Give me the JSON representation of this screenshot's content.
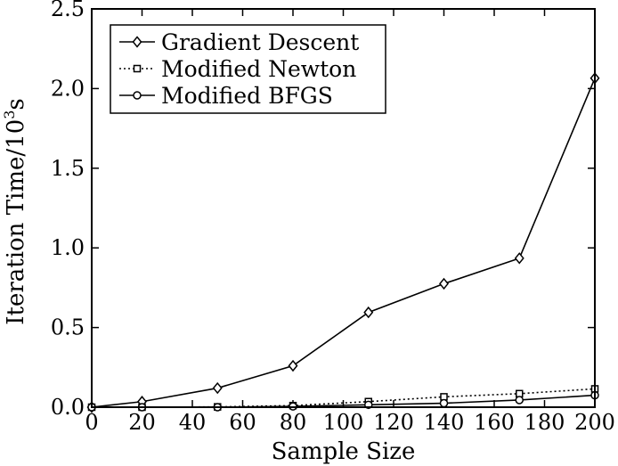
{
  "chart_data": {
    "type": "line",
    "title": "",
    "xlabel": "Sample Size",
    "ylabel": "Iteration Time/10",
    "ylabel_superscript": "3",
    "ylabel_unit": "s",
    "xlim": [
      0,
      200
    ],
    "ylim": [
      0,
      2.5
    ],
    "x_ticks": [
      "0",
      "20",
      "40",
      "60",
      "80",
      "100",
      "120",
      "140",
      "160",
      "180",
      "200"
    ],
    "x_tick_values": [
      0,
      20,
      40,
      60,
      80,
      100,
      120,
      140,
      160,
      180,
      200
    ],
    "y_ticks": [
      "0.0",
      "0.5",
      "1.0",
      "1.5",
      "2.0",
      "2.5"
    ],
    "y_tick_values": [
      0,
      0.5,
      1.0,
      1.5,
      2.0,
      2.5
    ],
    "grid": false,
    "legend_position": "top-left",
    "series": [
      {
        "name": "Gradient Descent",
        "marker": "diamond",
        "line_style": "solid",
        "color": "#000000",
        "x": [
          0,
          20,
          50,
          80,
          110,
          140,
          170,
          200
        ],
        "values": [
          0.0,
          0.035,
          0.12,
          0.26,
          0.595,
          0.775,
          0.935,
          2.065
        ]
      },
      {
        "name": "Modified Newton",
        "marker": "square",
        "line_style": "dotted",
        "color": "#000000",
        "x": [
          0,
          20,
          50,
          80,
          110,
          140,
          170,
          200
        ],
        "values": [
          0.0,
          0.0,
          0.002,
          0.01,
          0.035,
          0.065,
          0.085,
          0.115
        ]
      },
      {
        "name": "Modified BFGS",
        "marker": "circle",
        "line_style": "solid",
        "color": "#000000",
        "x": [
          0,
          20,
          50,
          80,
          110,
          140,
          170,
          200
        ],
        "values": [
          0.0,
          0.0,
          0.0,
          0.005,
          0.015,
          0.025,
          0.045,
          0.075
        ]
      }
    ]
  }
}
